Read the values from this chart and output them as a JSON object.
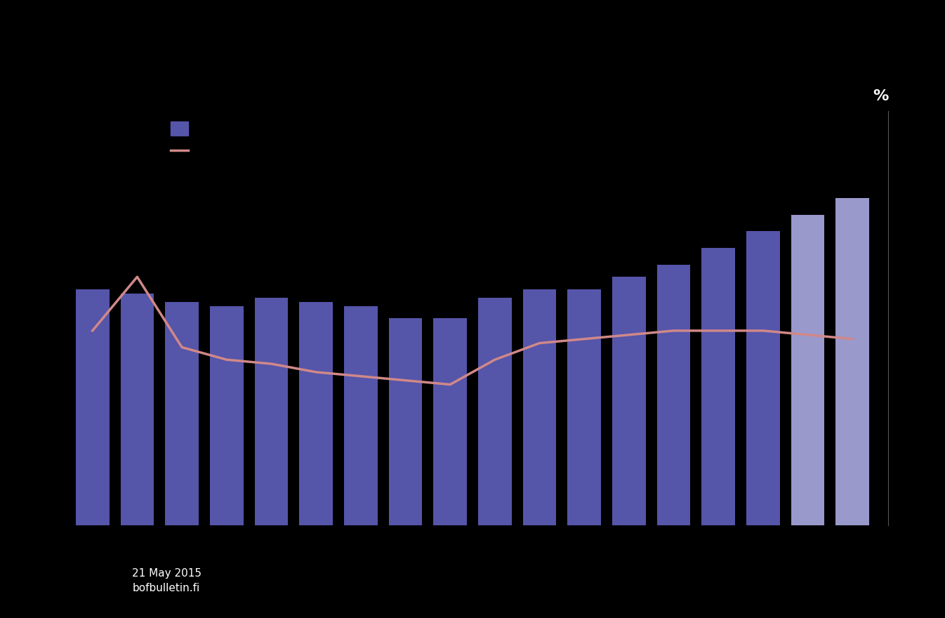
{
  "background_color": "#000000",
  "bar_values": [
    57,
    56,
    54,
    53,
    55,
    54,
    53,
    50,
    50,
    55,
    57,
    57,
    60,
    63,
    67,
    71,
    75,
    79
  ],
  "bar_colors": [
    "#5555aa",
    "#5555aa",
    "#5555aa",
    "#5555aa",
    "#5555aa",
    "#5555aa",
    "#5555aa",
    "#5555aa",
    "#5555aa",
    "#5555aa",
    "#5555aa",
    "#5555aa",
    "#5555aa",
    "#5555aa",
    "#5555aa",
    "#5555aa",
    "#9999cc",
    "#9999cc"
  ],
  "line_values": [
    47,
    60,
    43,
    40,
    39,
    37,
    36,
    35,
    34,
    40,
    44,
    45,
    46,
    47,
    47,
    47,
    46,
    45
  ],
  "line_color": "#d08888",
  "line_width": 2.5,
  "ylabel_text": "%",
  "ylim_min": 0,
  "ylim_max": 100,
  "bar_color_dark": "#5555aa",
  "bar_color_light": "#9999cc",
  "footer_text": "21 May 2015\nbofbulletin.fi",
  "spine_color": "#555555",
  "num_bars": 18
}
